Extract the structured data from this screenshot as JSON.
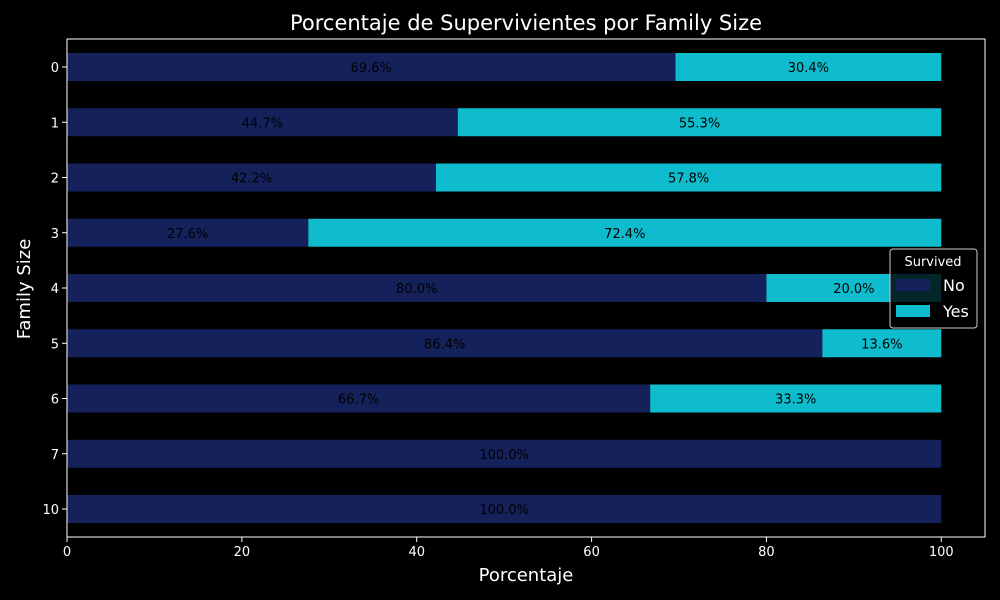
{
  "chart_data": {
    "type": "bar",
    "orientation": "horizontal",
    "stacked": true,
    "title": "Porcentaje de Supervivientes por Family Size",
    "xlabel": "Porcentaje",
    "ylabel": "Family Size",
    "xlim": [
      0,
      105
    ],
    "x_ticks": [
      0,
      20,
      40,
      60,
      80,
      100
    ],
    "categories": [
      "0",
      "1",
      "2",
      "3",
      "4",
      "5",
      "6",
      "7",
      "10"
    ],
    "series": [
      {
        "name": "No",
        "color": "#14215a",
        "values": [
          69.6,
          44.7,
          42.2,
          27.6,
          80.0,
          86.4,
          66.7,
          100.0,
          100.0
        ],
        "labels": [
          "69.6%",
          "44.7%",
          "42.2%",
          "27.6%",
          "80.0%",
          "86.4%",
          "66.7%",
          "100.0%",
          "100.0%"
        ]
      },
      {
        "name": "Yes",
        "color": "#0ebccd",
        "values": [
          30.4,
          55.3,
          57.8,
          72.4,
          20.0,
          13.6,
          33.3,
          0,
          0
        ],
        "labels": [
          "30.4%",
          "55.3%",
          "57.8%",
          "72.4%",
          "20.0%",
          "13.6%",
          "33.3%",
          "",
          ""
        ]
      }
    ],
    "legend": {
      "title": "Survived",
      "placement": "right"
    },
    "grid": false,
    "background": "#000000",
    "text_color": "#ffffff"
  }
}
